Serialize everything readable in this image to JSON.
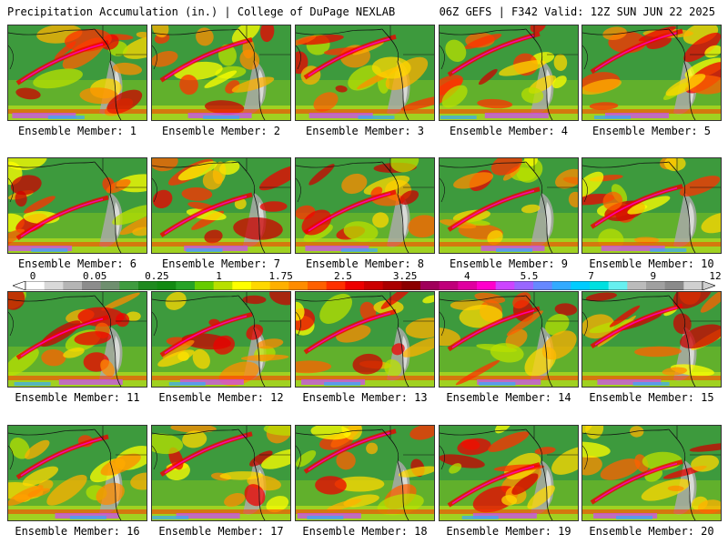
{
  "header": {
    "left_title": "Precipitation Accumulation (in.) | College of DuPage NEXLAB",
    "right_title": "06Z GEFS | F342 Valid: 12Z SUN JUN 22 2025"
  },
  "scale": {
    "tick_labels": [
      "0",
      "0.05",
      "0.25",
      "1",
      "1.75",
      "2.5",
      "3.25",
      "4",
      "5.5",
      "7",
      "9",
      "12"
    ],
    "colors": [
      "#ffffff",
      "#d9d9d9",
      "#b5b5b5",
      "#8c8c8c",
      "#6f8f6f",
      "#3f9c3f",
      "#1f8a1f",
      "#128a12",
      "#26a326",
      "#66cc00",
      "#b8e000",
      "#ffff00",
      "#ffd800",
      "#ffb000",
      "#ff8c00",
      "#ff6000",
      "#ff3000",
      "#ee0000",
      "#cc0000",
      "#aa0000",
      "#8b0000",
      "#a0005a",
      "#c0007a",
      "#e000a0",
      "#ff00cc",
      "#cc44ff",
      "#9966ff",
      "#6688ff",
      "#33aaff",
      "#00ccff",
      "#00e0e0",
      "#66f0f0",
      "#bbbbbb",
      "#a0a0a0",
      "#8a8a8a",
      "#d0d0d0"
    ]
  },
  "maps": [
    {
      "label": "Ensemble Member: 1"
    },
    {
      "label": "Ensemble Member: 2"
    },
    {
      "label": "Ensemble Member: 3"
    },
    {
      "label": "Ensemble Member: 4"
    },
    {
      "label": "Ensemble Member: 5"
    },
    {
      "label": "Ensemble Member: 6"
    },
    {
      "label": "Ensemble Member: 7"
    },
    {
      "label": "Ensemble Member: 8"
    },
    {
      "label": "Ensemble Member: 9"
    },
    {
      "label": "Ensemble Member: 10"
    },
    {
      "label": "Ensemble Member: 11"
    },
    {
      "label": "Ensemble Member: 12"
    },
    {
      "label": "Ensemble Member: 13"
    },
    {
      "label": "Ensemble Member: 14"
    },
    {
      "label": "Ensemble Member: 15"
    },
    {
      "label": "Ensemble Member: 16"
    },
    {
      "label": "Ensemble Member: 17"
    },
    {
      "label": "Ensemble Member: 18"
    },
    {
      "label": "Ensemble Member: 19"
    },
    {
      "label": "Ensemble Member: 20"
    }
  ]
}
